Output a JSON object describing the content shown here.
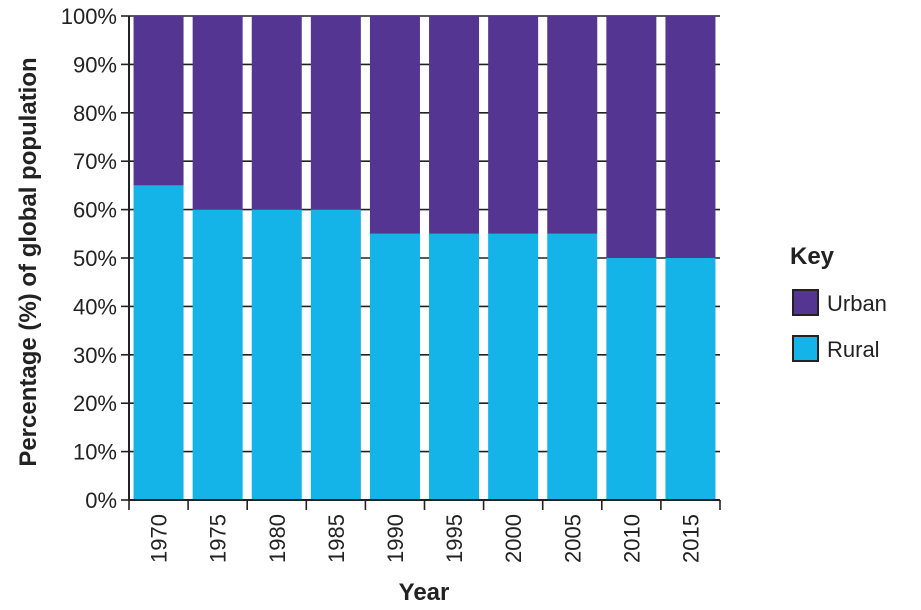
{
  "chart_data": {
    "type": "bar",
    "stacked": true,
    "categories": [
      "1970",
      "1975",
      "1980",
      "1985",
      "1990",
      "1995",
      "2000",
      "2005",
      "2010",
      "2015"
    ],
    "series": [
      {
        "name": "Rural",
        "values": [
          65,
          60,
          60,
          60,
          55,
          55,
          55,
          55,
          50,
          50
        ],
        "color": "#14b3e8"
      },
      {
        "name": "Urban",
        "values": [
          35,
          40,
          40,
          40,
          45,
          45,
          45,
          45,
          50,
          50
        ],
        "color": "#553592"
      }
    ],
    "xlabel": "Year",
    "ylabel": "Percentage (%) of global population",
    "ylim": [
      0,
      100
    ],
    "yticks": [
      "0%",
      "10%",
      "20%",
      "30%",
      "40%",
      "50%",
      "60%",
      "70%",
      "80%",
      "90%",
      "100%"
    ],
    "grid": true,
    "legend": {
      "title": "Key",
      "placement": "right",
      "entries": [
        "Urban",
        "Rural"
      ]
    }
  }
}
